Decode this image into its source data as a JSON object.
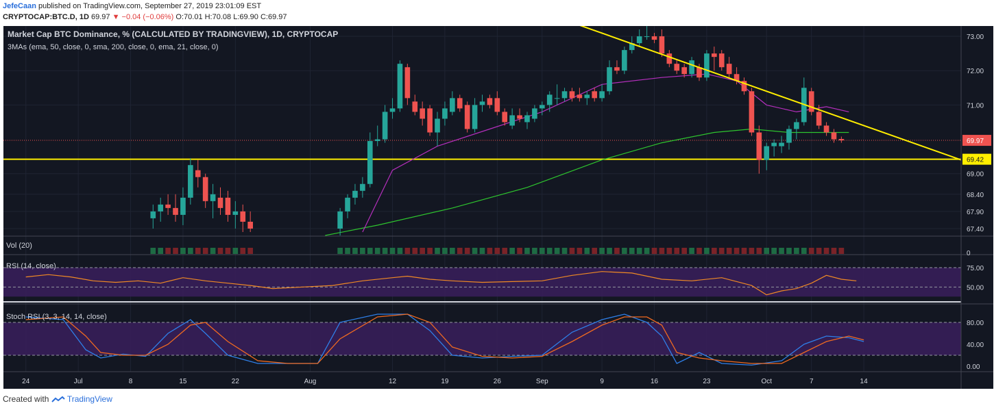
{
  "header": {
    "author": "JefeCaan",
    "published_text": "published on TradingView.com, September 27, 2019 23:01:09 EST",
    "symbol_line": "CRYPTOCAP:BTC.D, 1D",
    "last": "69.97",
    "change_arrow": "▼",
    "change": "−0.04 (−0.06%)",
    "ohlc": "O:70.01 H:70.08 L:69.90 C:69.97"
  },
  "footer": {
    "created_with": "Created with",
    "brand": "TradingView"
  },
  "colors": {
    "background": "#131722",
    "bull": "#26a69a",
    "bear": "#ef5350",
    "ema50": "#2ec52e",
    "ema21": "#b52fbd",
    "trendline": "#ffee00",
    "rsi_line": "#f08a24",
    "stoch_k": "#2f7fe8",
    "stoch_d": "#f06a20",
    "band_fill": "#3a1f5c"
  },
  "chart_data": {
    "type": "candlestick",
    "title": "Market Cap BTC Dominance, % (CALCULATED BY TRADINGVIEW), 1D, CRYPTOCAP",
    "indicator_label": "3MAs (ema, 50, close, 0, sma, 200, close, 0, ema, 21, close, 0)",
    "y_ticks": [
      "73.00",
      "72.00",
      "71.00",
      "69.00",
      "68.40",
      "67.90",
      "67.40"
    ],
    "y_tick_values": [
      73.0,
      72.0,
      71.0,
      69.0,
      68.4,
      67.9,
      67.4
    ],
    "last_price_label": "69.97",
    "last_price": 69.97,
    "support_label": "69.42",
    "support": 69.42,
    "x_ticks": [
      "24",
      "Jul",
      "8",
      "15",
      "22",
      "Aug",
      "12",
      "19",
      "26",
      "Sep",
      "9",
      "16",
      "23",
      "Oct",
      "7",
      "14"
    ],
    "x_tick_days": [
      -7,
      0,
      7,
      14,
      21,
      31,
      42,
      49,
      56,
      62,
      70,
      77,
      84,
      92,
      98,
      105
    ],
    "x_domain_days": [
      -10,
      118
    ],
    "x_axis_note": "days counted from Jul 1 2019",
    "y_domain": [
      67.2,
      73.3
    ],
    "candles": [
      {
        "d": 10,
        "o": 67.7,
        "h": 68.1,
        "l": 67.4,
        "c": 67.9
      },
      {
        "d": 11,
        "o": 67.9,
        "h": 68.3,
        "l": 67.6,
        "c": 68.1
      },
      {
        "d": 12,
        "o": 68.1,
        "h": 68.4,
        "l": 67.8,
        "c": 68.0
      },
      {
        "d": 13,
        "o": 68.0,
        "h": 68.4,
        "l": 67.6,
        "c": 67.8
      },
      {
        "d": 14,
        "o": 67.8,
        "h": 68.6,
        "l": 67.5,
        "c": 68.3
      },
      {
        "d": 15,
        "o": 68.3,
        "h": 69.45,
        "l": 68.1,
        "c": 69.25
      },
      {
        "d": 16,
        "o": 69.1,
        "h": 69.4,
        "l": 68.6,
        "c": 68.9
      },
      {
        "d": 17,
        "o": 68.9,
        "h": 69.0,
        "l": 68.0,
        "c": 68.2
      },
      {
        "d": 18,
        "o": 68.2,
        "h": 68.7,
        "l": 67.7,
        "c": 68.4
      },
      {
        "d": 19,
        "o": 68.3,
        "h": 68.6,
        "l": 67.8,
        "c": 68.0
      },
      {
        "d": 20,
        "o": 68.3,
        "h": 68.5,
        "l": 67.6,
        "c": 67.8
      },
      {
        "d": 21,
        "o": 67.8,
        "h": 68.2,
        "l": 67.4,
        "c": 67.9
      },
      {
        "d": 22,
        "o": 67.9,
        "h": 68.1,
        "l": 67.3,
        "c": 67.6
      },
      {
        "d": 23,
        "o": 67.6,
        "h": 67.9,
        "l": 67.3,
        "c": 67.4
      },
      {
        "d": 35,
        "o": 67.4,
        "h": 68.0,
        "l": 67.2,
        "c": 67.9
      },
      {
        "d": 36,
        "o": 67.9,
        "h": 68.4,
        "l": 67.7,
        "c": 68.3
      },
      {
        "d": 37,
        "o": 68.3,
        "h": 68.7,
        "l": 68.1,
        "c": 68.5
      },
      {
        "d": 38,
        "o": 68.5,
        "h": 68.9,
        "l": 68.3,
        "c": 68.7
      },
      {
        "d": 39,
        "o": 68.7,
        "h": 70.2,
        "l": 68.6,
        "c": 69.95
      },
      {
        "d": 40,
        "o": 69.95,
        "h": 70.4,
        "l": 69.8,
        "c": 70.0
      },
      {
        "d": 41,
        "o": 70.0,
        "h": 71.0,
        "l": 69.9,
        "c": 70.8
      },
      {
        "d": 42,
        "o": 70.8,
        "h": 71.2,
        "l": 70.6,
        "c": 70.9
      },
      {
        "d": 43,
        "o": 70.9,
        "h": 72.3,
        "l": 70.8,
        "c": 72.2
      },
      {
        "d": 44,
        "o": 72.1,
        "h": 72.2,
        "l": 71.0,
        "c": 71.2
      },
      {
        "d": 45,
        "o": 71.1,
        "h": 71.3,
        "l": 70.7,
        "c": 70.8
      },
      {
        "d": 46,
        "o": 70.9,
        "h": 71.1,
        "l": 70.4,
        "c": 70.6
      },
      {
        "d": 47,
        "o": 70.9,
        "h": 71.0,
        "l": 70.1,
        "c": 70.2
      },
      {
        "d": 48,
        "o": 70.2,
        "h": 70.8,
        "l": 69.8,
        "c": 70.6
      },
      {
        "d": 49,
        "o": 70.6,
        "h": 71.1,
        "l": 70.4,
        "c": 70.9
      },
      {
        "d": 50,
        "o": 70.8,
        "h": 71.4,
        "l": 70.7,
        "c": 71.2
      },
      {
        "d": 51,
        "o": 71.2,
        "h": 71.3,
        "l": 70.8,
        "c": 70.9
      },
      {
        "d": 52,
        "o": 71.0,
        "h": 71.1,
        "l": 70.2,
        "c": 70.3
      },
      {
        "d": 53,
        "o": 70.3,
        "h": 71.2,
        "l": 70.2,
        "c": 71.0
      },
      {
        "d": 54,
        "o": 71.0,
        "h": 71.3,
        "l": 70.8,
        "c": 71.1
      },
      {
        "d": 55,
        "o": 71.2,
        "h": 71.3,
        "l": 70.9,
        "c": 71.0
      },
      {
        "d": 56,
        "o": 71.2,
        "h": 71.4,
        "l": 70.7,
        "c": 70.8
      },
      {
        "d": 57,
        "o": 70.8,
        "h": 70.9,
        "l": 70.4,
        "c": 70.5
      },
      {
        "d": 58,
        "o": 70.4,
        "h": 70.9,
        "l": 70.3,
        "c": 70.7
      },
      {
        "d": 59,
        "o": 70.7,
        "h": 70.9,
        "l": 70.5,
        "c": 70.6
      },
      {
        "d": 60,
        "o": 70.5,
        "h": 70.8,
        "l": 70.3,
        "c": 70.7
      },
      {
        "d": 61,
        "o": 70.6,
        "h": 71.0,
        "l": 70.5,
        "c": 70.9
      },
      {
        "d": 62,
        "o": 70.9,
        "h": 71.1,
        "l": 70.7,
        "c": 71.0
      },
      {
        "d": 63,
        "o": 71.0,
        "h": 71.4,
        "l": 70.8,
        "c": 71.3
      },
      {
        "d": 64,
        "o": 71.2,
        "h": 71.6,
        "l": 71.0,
        "c": 71.2
      },
      {
        "d": 65,
        "o": 71.2,
        "h": 71.5,
        "l": 71.1,
        "c": 71.4
      },
      {
        "d": 66,
        "o": 71.4,
        "h": 71.5,
        "l": 71.1,
        "c": 71.2
      },
      {
        "d": 67,
        "o": 71.3,
        "h": 71.5,
        "l": 71.1,
        "c": 71.2
      },
      {
        "d": 68,
        "o": 71.2,
        "h": 71.4,
        "l": 71.0,
        "c": 71.3
      },
      {
        "d": 69,
        "o": 71.4,
        "h": 71.5,
        "l": 71.1,
        "c": 71.2
      },
      {
        "d": 70,
        "o": 71.2,
        "h": 71.6,
        "l": 71.1,
        "c": 71.4
      },
      {
        "d": 71,
        "o": 71.4,
        "h": 72.3,
        "l": 71.3,
        "c": 72.1
      },
      {
        "d": 72,
        "o": 72.1,
        "h": 72.3,
        "l": 71.9,
        "c": 72.0
      },
      {
        "d": 73,
        "o": 72.0,
        "h": 72.7,
        "l": 71.9,
        "c": 72.6
      },
      {
        "d": 74,
        "o": 72.6,
        "h": 73.0,
        "l": 72.5,
        "c": 72.8
      },
      {
        "d": 75,
        "o": 72.8,
        "h": 73.2,
        "l": 72.7,
        "c": 73.0
      },
      {
        "d": 76,
        "o": 73.0,
        "h": 73.4,
        "l": 72.9,
        "c": 73.0
      },
      {
        "d": 77,
        "o": 73.0,
        "h": 73.1,
        "l": 72.8,
        "c": 72.9
      },
      {
        "d": 78,
        "o": 73.0,
        "h": 73.2,
        "l": 72.4,
        "c": 72.5
      },
      {
        "d": 79,
        "o": 72.5,
        "h": 72.6,
        "l": 72.1,
        "c": 72.2
      },
      {
        "d": 80,
        "o": 72.2,
        "h": 72.3,
        "l": 71.9,
        "c": 72.0
      },
      {
        "d": 81,
        "o": 72.1,
        "h": 72.2,
        "l": 71.8,
        "c": 71.9
      },
      {
        "d": 82,
        "o": 71.9,
        "h": 72.4,
        "l": 71.8,
        "c": 72.3
      },
      {
        "d": 83,
        "o": 72.1,
        "h": 72.2,
        "l": 71.7,
        "c": 71.8
      },
      {
        "d": 84,
        "o": 71.8,
        "h": 72.6,
        "l": 71.7,
        "c": 72.5
      },
      {
        "d": 85,
        "o": 72.5,
        "h": 72.7,
        "l": 72.0,
        "c": 72.4
      },
      {
        "d": 86,
        "o": 72.5,
        "h": 72.6,
        "l": 72.0,
        "c": 72.1
      },
      {
        "d": 87,
        "o": 72.2,
        "h": 72.4,
        "l": 71.8,
        "c": 71.9
      },
      {
        "d": 88,
        "o": 71.9,
        "h": 72.1,
        "l": 71.6,
        "c": 71.7
      },
      {
        "d": 89,
        "o": 71.7,
        "h": 71.8,
        "l": 71.3,
        "c": 71.4
      },
      {
        "d": 90,
        "o": 71.4,
        "h": 71.5,
        "l": 70.1,
        "c": 70.2
      },
      {
        "d": 91,
        "o": 70.2,
        "h": 70.4,
        "l": 69.0,
        "c": 69.4
      },
      {
        "d": 92,
        "o": 69.4,
        "h": 69.9,
        "l": 69.1,
        "c": 69.8
      },
      {
        "d": 93,
        "o": 69.8,
        "h": 70.0,
        "l": 69.5,
        "c": 69.9
      },
      {
        "d": 94,
        "o": 69.8,
        "h": 70.1,
        "l": 69.6,
        "c": 69.9
      },
      {
        "d": 95,
        "o": 69.9,
        "h": 70.4,
        "l": 69.7,
        "c": 70.3
      },
      {
        "d": 96,
        "o": 70.3,
        "h": 70.6,
        "l": 70.0,
        "c": 70.5
      },
      {
        "d": 97,
        "o": 70.5,
        "h": 71.8,
        "l": 70.4,
        "c": 71.5
      },
      {
        "d": 98,
        "o": 71.4,
        "h": 71.5,
        "l": 70.7,
        "c": 70.8
      },
      {
        "d": 99,
        "o": 70.8,
        "h": 71.0,
        "l": 70.3,
        "c": 70.4
      },
      {
        "d": 100,
        "o": 70.4,
        "h": 70.5,
        "l": 70.1,
        "c": 70.2
      },
      {
        "d": 101,
        "o": 70.2,
        "h": 70.3,
        "l": 69.9,
        "c": 70.0
      },
      {
        "d": 102,
        "o": 70.01,
        "h": 70.08,
        "l": 69.9,
        "c": 69.97
      }
    ],
    "ema50": [
      [
        33,
        67.2
      ],
      [
        40,
        67.5
      ],
      [
        50,
        68.0
      ],
      [
        60,
        68.6
      ],
      [
        70,
        69.4
      ],
      [
        78,
        69.9
      ],
      [
        85,
        70.2
      ],
      [
        90,
        70.3
      ],
      [
        95,
        70.2
      ],
      [
        103,
        70.2
      ]
    ],
    "ema21": [
      [
        38,
        67.3
      ],
      [
        42,
        69.1
      ],
      [
        48,
        69.8
      ],
      [
        55,
        70.3
      ],
      [
        62,
        70.8
      ],
      [
        70,
        71.6
      ],
      [
        78,
        71.8
      ],
      [
        84,
        71.9
      ],
      [
        88,
        71.7
      ],
      [
        92,
        71.0
      ],
      [
        96,
        70.8
      ],
      [
        100,
        70.95
      ],
      [
        103,
        70.8
      ]
    ],
    "trendline": [
      [
        66,
        73.4
      ],
      [
        118,
        69.4
      ]
    ],
    "volume_label": "Vol (20)",
    "volume_zero_label": "0",
    "rsi_label": "RSI (14, close)",
    "rsi_ticks": [
      "75.00",
      "50.00"
    ],
    "rsi_tick_values": [
      75,
      50
    ],
    "rsi": [
      [
        -7,
        63
      ],
      [
        -4,
        66
      ],
      [
        -1,
        63
      ],
      [
        2,
        58
      ],
      [
        5,
        56
      ],
      [
        8,
        58
      ],
      [
        11,
        55
      ],
      [
        14,
        62
      ],
      [
        17,
        58
      ],
      [
        20,
        55
      ],
      [
        23,
        52
      ],
      [
        26,
        48
      ],
      [
        30,
        50
      ],
      [
        34,
        52
      ],
      [
        38,
        58
      ],
      [
        42,
        62
      ],
      [
        44,
        64
      ],
      [
        47,
        60
      ],
      [
        50,
        58
      ],
      [
        54,
        56
      ],
      [
        58,
        57
      ],
      [
        62,
        58
      ],
      [
        66,
        65
      ],
      [
        70,
        70
      ],
      [
        74,
        68
      ],
      [
        78,
        60
      ],
      [
        82,
        58
      ],
      [
        86,
        62
      ],
      [
        90,
        52
      ],
      [
        92,
        40
      ],
      [
        94,
        45
      ],
      [
        96,
        48
      ],
      [
        98,
        55
      ],
      [
        100,
        65
      ],
      [
        102,
        60
      ],
      [
        104,
        58
      ]
    ],
    "stoch_label": "Stoch RSI (3, 3, 14, 14, close)",
    "stoch_ticks": [
      "80.00",
      "40.00",
      "0.00"
    ],
    "stoch_tick_values": [
      80,
      40,
      0
    ],
    "stoch_k": [
      [
        -7,
        90
      ],
      [
        -2,
        85
      ],
      [
        1,
        30
      ],
      [
        3,
        15
      ],
      [
        6,
        22
      ],
      [
        9,
        18
      ],
      [
        12,
        60
      ],
      [
        15,
        85
      ],
      [
        17,
        60
      ],
      [
        20,
        20
      ],
      [
        24,
        5
      ],
      [
        28,
        5
      ],
      [
        32,
        5
      ],
      [
        35,
        80
      ],
      [
        40,
        95
      ],
      [
        44,
        95
      ],
      [
        47,
        65
      ],
      [
        50,
        20
      ],
      [
        54,
        15
      ],
      [
        58,
        18
      ],
      [
        62,
        20
      ],
      [
        66,
        62
      ],
      [
        70,
        85
      ],
      [
        73,
        95
      ],
      [
        76,
        80
      ],
      [
        78,
        55
      ],
      [
        80,
        5
      ],
      [
        83,
        25
      ],
      [
        86,
        5
      ],
      [
        90,
        2
      ],
      [
        94,
        10
      ],
      [
        97,
        40
      ],
      [
        100,
        55
      ],
      [
        103,
        52
      ],
      [
        105,
        45
      ]
    ],
    "stoch_d": [
      [
        -7,
        85
      ],
      [
        -2,
        90
      ],
      [
        1,
        55
      ],
      [
        3,
        25
      ],
      [
        6,
        20
      ],
      [
        9,
        20
      ],
      [
        12,
        40
      ],
      [
        15,
        75
      ],
      [
        17,
        80
      ],
      [
        20,
        45
      ],
      [
        24,
        10
      ],
      [
        28,
        5
      ],
      [
        32,
        5
      ],
      [
        35,
        50
      ],
      [
        40,
        90
      ],
      [
        44,
        95
      ],
      [
        47,
        80
      ],
      [
        50,
        35
      ],
      [
        54,
        18
      ],
      [
        58,
        15
      ],
      [
        62,
        18
      ],
      [
        66,
        45
      ],
      [
        70,
        75
      ],
      [
        73,
        90
      ],
      [
        76,
        90
      ],
      [
        78,
        75
      ],
      [
        80,
        25
      ],
      [
        83,
        15
      ],
      [
        86,
        10
      ],
      [
        90,
        5
      ],
      [
        94,
        5
      ],
      [
        97,
        25
      ],
      [
        100,
        45
      ],
      [
        103,
        55
      ],
      [
        105,
        48
      ]
    ]
  }
}
